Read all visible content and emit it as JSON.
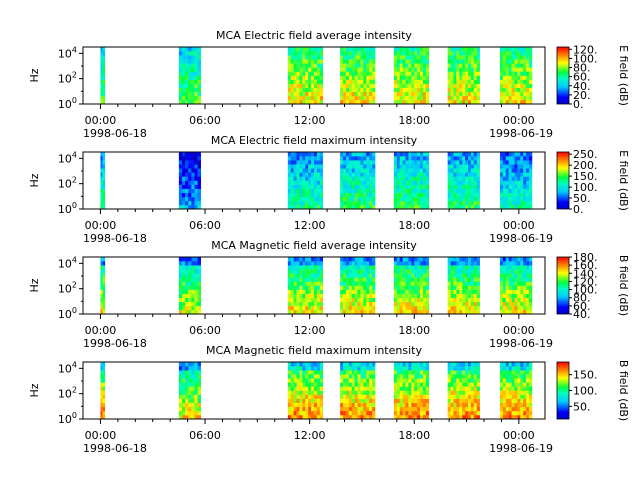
{
  "chart_data": [
    {
      "type": "heatmap",
      "title": "MCA  Electric field average intensity",
      "ylabel": "Hz",
      "colorbar_label": "E field (dB)",
      "colorbar_range": [
        0,
        125
      ],
      "colorbar_ticks": [
        "0.",
        "20.",
        "40.",
        "60.",
        "80.",
        "100.",
        "120."
      ],
      "yscale": "log",
      "y_ticks": [
        {
          "base": "10",
          "exp": "0"
        },
        {
          "base": "10",
          "exp": "2"
        },
        {
          "base": "10",
          "exp": "4"
        }
      ],
      "x_ticks": [
        "00:00",
        "06:00",
        "12:00",
        "18:00",
        "00:00"
      ],
      "x_dates": [
        "1998-06-18",
        "1998-06-19"
      ],
      "segments": [
        {
          "start": "00:00",
          "end": "00:15",
          "level": 0.45
        },
        {
          "start": "04:30",
          "end": "05:45",
          "level": 0.45
        },
        {
          "start": "10:45",
          "end": "12:45",
          "level": 0.6
        },
        {
          "start": "13:45",
          "end": "15:45",
          "level": 0.6
        },
        {
          "start": "16:50",
          "end": "18:50",
          "level": 0.6
        },
        {
          "start": "19:55",
          "end": "21:45",
          "level": 0.6
        },
        {
          "start": "22:55",
          "end": "24:45",
          "level": 0.6
        }
      ]
    },
    {
      "type": "heatmap",
      "title": "MCA  Electric field maximum intensity",
      "ylabel": "Hz",
      "colorbar_label": "E field (dB)",
      "colorbar_range": [
        0,
        260
      ],
      "colorbar_ticks": [
        "0.",
        "50.",
        "100.",
        "150.",
        "200.",
        "250."
      ],
      "yscale": "log",
      "y_ticks": [
        {
          "base": "10",
          "exp": "0"
        },
        {
          "base": "10",
          "exp": "2"
        },
        {
          "base": "10",
          "exp": "4"
        }
      ],
      "x_ticks": [
        "00:00",
        "06:00",
        "12:00",
        "18:00",
        "00:00"
      ],
      "x_dates": [
        "1998-06-18",
        "1998-06-19"
      ],
      "segments": [
        {
          "start": "00:00",
          "end": "00:15",
          "level": 0.35
        },
        {
          "start": "04:30",
          "end": "05:45",
          "level": 0.15
        },
        {
          "start": "10:45",
          "end": "12:45",
          "level": 0.35
        },
        {
          "start": "13:45",
          "end": "15:45",
          "level": 0.38
        },
        {
          "start": "16:50",
          "end": "18:50",
          "level": 0.4
        },
        {
          "start": "19:55",
          "end": "21:45",
          "level": 0.38
        },
        {
          "start": "22:55",
          "end": "24:45",
          "level": 0.3
        }
      ]
    },
    {
      "type": "heatmap",
      "title": "MCA  Magnetic field average intensity",
      "ylabel": "Hz",
      "colorbar_label": "B field (dB)",
      "colorbar_range": [
        40,
        180
      ],
      "colorbar_ticks": [
        "40.",
        "60.",
        "80.",
        "100.",
        "120.",
        "140.",
        "160.",
        "180."
      ],
      "yscale": "log",
      "y_ticks": [
        {
          "base": "10",
          "exp": "0"
        },
        {
          "base": "10",
          "exp": "2"
        },
        {
          "base": "10",
          "exp": "4"
        }
      ],
      "x_ticks": [
        "00:00",
        "06:00",
        "12:00",
        "18:00",
        "00:00"
      ],
      "x_dates": [
        "1998-06-18",
        "1998-06-19"
      ],
      "segments": [
        {
          "start": "00:00",
          "end": "00:15",
          "level": 0.55
        },
        {
          "start": "04:30",
          "end": "05:45",
          "level": 0.5
        },
        {
          "start": "10:45",
          "end": "12:45",
          "level": 0.55
        },
        {
          "start": "13:45",
          "end": "15:45",
          "level": 0.55
        },
        {
          "start": "16:50",
          "end": "18:50",
          "level": 0.55
        },
        {
          "start": "19:55",
          "end": "21:45",
          "level": 0.55
        },
        {
          "start": "22:55",
          "end": "24:45",
          "level": 0.55
        }
      ]
    },
    {
      "type": "heatmap",
      "title": "MCA  Magnetic field maximum intensity",
      "ylabel": "Hz",
      "colorbar_label": "B field (dB)",
      "colorbar_range": [
        10,
        190
      ],
      "colorbar_ticks": [
        "50.",
        "100.",
        "150."
      ],
      "yscale": "log",
      "y_ticks": [
        {
          "base": "10",
          "exp": "0"
        },
        {
          "base": "10",
          "exp": "2"
        },
        {
          "base": "10",
          "exp": "4"
        }
      ],
      "x_ticks": [
        "00:00",
        "06:00",
        "12:00",
        "18:00",
        "00:00"
      ],
      "x_dates": [
        "1998-06-18",
        "1998-06-19"
      ],
      "segments": [
        {
          "start": "00:00",
          "end": "00:15",
          "level": 0.65
        },
        {
          "start": "04:30",
          "end": "05:45",
          "level": 0.55
        },
        {
          "start": "10:45",
          "end": "12:45",
          "level": 0.65
        },
        {
          "start": "13:45",
          "end": "15:45",
          "level": 0.65
        },
        {
          "start": "16:50",
          "end": "18:50",
          "level": 0.65
        },
        {
          "start": "19:55",
          "end": "21:45",
          "level": 0.65
        },
        {
          "start": "22:55",
          "end": "24:45",
          "level": 0.65
        }
      ]
    }
  ]
}
